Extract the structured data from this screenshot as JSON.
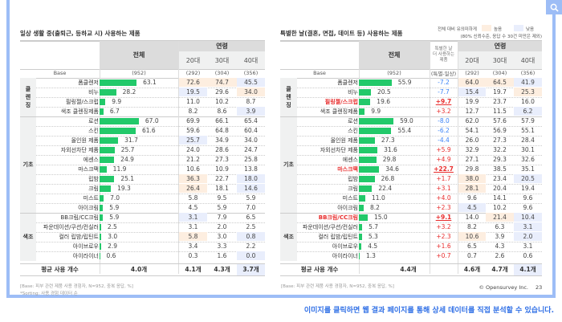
{
  "legend": {
    "line1": "전체 대비 유의미하게",
    "high": "높음",
    "low": "낮음",
    "line2": "(80% 신뢰수준, 응답 수 30건 미만은 제외)",
    "high_color": "#fdeee0",
    "low_color": "#e9eefc"
  },
  "left": {
    "title": "일상 생활 중(출퇴근, 등하교 시) 사용하는 제품",
    "total_header": "전체",
    "age_header": "연령",
    "ages": [
      "20대",
      "30대",
      "40대"
    ],
    "base_label": "Base",
    "base": [
      "(952)",
      "(292)",
      "(304)",
      "(356)"
    ],
    "categories": [
      {
        "name": "클\n렌\n징",
        "rows": 4
      },
      {
        "name": "기초",
        "rows": 10
      },
      {
        "name": "색조",
        "rows": 5
      }
    ],
    "rows": [
      {
        "label": "폼클렌저",
        "total": "63.1",
        "v": 63.1,
        "ages": [
          "72.6",
          "74.7",
          "45.5"
        ],
        "hl": [
          "h",
          "h",
          "l"
        ]
      },
      {
        "label": "비누",
        "total": "28.2",
        "v": 28.2,
        "ages": [
          "19.5",
          "29.6",
          "34.0"
        ],
        "hl": [
          "l",
          "",
          "h"
        ]
      },
      {
        "label": "필링젤/스크럽",
        "total": "9.9",
        "v": 9.9,
        "ages": [
          "11.0",
          "10.2",
          "8.7"
        ],
        "hl": [
          "",
          "",
          ""
        ]
      },
      {
        "label": "색조 클렌징제품",
        "total": "6.7",
        "v": 6.7,
        "ages": [
          "8.2",
          "8.6",
          "3.9"
        ],
        "hl": [
          "",
          "",
          "l"
        ]
      },
      {
        "label": "로션",
        "total": "67.0",
        "v": 67.0,
        "ages": [
          "69.9",
          "66.1",
          "65.4"
        ],
        "hl": [
          "",
          "",
          ""
        ]
      },
      {
        "label": "스킨",
        "total": "61.6",
        "v": 61.6,
        "ages": [
          "59.6",
          "64.8",
          "60.4"
        ],
        "hl": [
          "",
          "",
          ""
        ]
      },
      {
        "label": "올인원 제품",
        "total": "31.7",
        "v": 31.7,
        "ages": [
          "25.7",
          "34.9",
          "34.0"
        ],
        "hl": [
          "l",
          "",
          ""
        ]
      },
      {
        "label": "자외선차단 제품",
        "total": "25.7",
        "v": 25.7,
        "ages": [
          "24.0",
          "28.6",
          "24.7"
        ],
        "hl": [
          "",
          "",
          ""
        ]
      },
      {
        "label": "에센스",
        "total": "24.9",
        "v": 24.9,
        "ages": [
          "21.2",
          "27.3",
          "25.8"
        ],
        "hl": [
          "",
          "",
          ""
        ]
      },
      {
        "label": "마스크팩",
        "total": "11.9",
        "v": 11.9,
        "ages": [
          "10.6",
          "10.9",
          "13.8"
        ],
        "hl": [
          "",
          "",
          ""
        ]
      },
      {
        "label": "립밤",
        "total": "25.1",
        "v": 25.1,
        "ages": [
          "36.3",
          "22.7",
          "18.0"
        ],
        "hl": [
          "h",
          "",
          "l"
        ]
      },
      {
        "label": "크림",
        "total": "19.3",
        "v": 19.3,
        "ages": [
          "26.4",
          "18.1",
          "14.6"
        ],
        "hl": [
          "h",
          "",
          "l"
        ]
      },
      {
        "label": "미스트",
        "total": "7.0",
        "v": 7.0,
        "ages": [
          "5.8",
          "9.5",
          "5.9"
        ],
        "hl": [
          "",
          "",
          ""
        ]
      },
      {
        "label": "아이크림",
        "total": "5.9",
        "v": 5.9,
        "ages": [
          "4.5",
          "5.9",
          "7.0"
        ],
        "hl": [
          "",
          "",
          ""
        ]
      },
      {
        "label": "BB크림/CC크림",
        "total": "5.9",
        "v": 5.9,
        "ages": [
          "3.1",
          "7.9",
          "6.5"
        ],
        "hl": [
          "l",
          "",
          ""
        ]
      },
      {
        "label": "파운데이션/쿠션/컨실러",
        "total": "2.5",
        "v": 2.5,
        "ages": [
          "3.1",
          "2.0",
          "2.5"
        ],
        "hl": [
          "",
          "",
          ""
        ]
      },
      {
        "label": "컬러 립밤/립틴트",
        "total": "3.0",
        "v": 3.0,
        "ages": [
          "5.8",
          "3.0",
          "0.8"
        ],
        "hl": [
          "h",
          "",
          "l"
        ]
      },
      {
        "label": "아이브로우",
        "total": "2.9",
        "v": 2.9,
        "ages": [
          "3.4",
          "3.3",
          "2.2"
        ],
        "hl": [
          "",
          "",
          ""
        ]
      },
      {
        "label": "아이라이너",
        "total": "0.6",
        "v": 0.6,
        "ages": [
          "0.3",
          "1.6",
          "0.0"
        ],
        "hl": [
          "",
          "",
          "l"
        ]
      }
    ],
    "avg_label": "평균 사용 개수",
    "avg": [
      "4.0개",
      "4.1개",
      "4.3개",
      "3.7개"
    ],
    "avg_hl": [
      "",
      "",
      "l"
    ],
    "footnote1": "[Base: 피부 관련 제품 사용 경험자, N=952, 중복 응답, %]",
    "footnote2": "*Sorting: 사용 경험 데이터 순"
  },
  "right": {
    "title": "특별한 날(결혼, 면접, 데이트 등) 사용하는 제품",
    "total_header": "전체",
    "diff_header": "특별한 날\n더 사용하는\n제품",
    "age_header": "연령",
    "ages": [
      "20대",
      "30대",
      "40대"
    ],
    "base_label": "Base",
    "base": [
      "(952)",
      "(특별-일상)",
      "(292)",
      "(304)",
      "(356)"
    ],
    "categories": [
      {
        "name": "클\n렌\n징",
        "rows": 4
      },
      {
        "name": "기초",
        "rows": 10
      },
      {
        "name": "색조",
        "rows": 5
      }
    ],
    "rows": [
      {
        "label": "폼클렌저",
        "total": "55.9",
        "v": 55.9,
        "diff": "-7.2",
        "ages": [
          "64.0",
          "64.5",
          "41.9"
        ],
        "hl": [
          "h",
          "h",
          "l"
        ]
      },
      {
        "label": "비누",
        "total": "20.5",
        "v": 20.5,
        "diff": "-7.7",
        "ages": [
          "15.4",
          "19.7",
          "25.3"
        ],
        "hl": [
          "l",
          "",
          "h"
        ]
      },
      {
        "label": "필링젤/스크럽",
        "total": "19.6",
        "v": 19.6,
        "diff": "+9.7",
        "em": true,
        "ages": [
          "19.9",
          "23.7",
          "16.0"
        ],
        "hl": [
          "",
          "",
          ""
        ]
      },
      {
        "label": "색조 클렌징제품",
        "total": "9.9",
        "v": 9.9,
        "diff": "+3.2",
        "ages": [
          "12.7",
          "11.5",
          "6.2"
        ],
        "hl": [
          "",
          "",
          "l"
        ]
      },
      {
        "label": "로션",
        "total": "59.0",
        "v": 59.0,
        "diff": "-8.0",
        "ages": [
          "62.0",
          "57.6",
          "57.9"
        ],
        "hl": [
          "",
          "",
          ""
        ]
      },
      {
        "label": "스킨",
        "total": "55.4",
        "v": 55.4,
        "diff": "-6.2",
        "ages": [
          "54.1",
          "56.9",
          "55.1"
        ],
        "hl": [
          "",
          "",
          ""
        ]
      },
      {
        "label": "올인원 제품",
        "total": "27.3",
        "v": 27.3,
        "diff": "-4.4",
        "ages": [
          "26.0",
          "27.3",
          "28.4"
        ],
        "hl": [
          "",
          "",
          ""
        ]
      },
      {
        "label": "자외선차단 제품",
        "total": "31.6",
        "v": 31.6,
        "diff": "+5.9",
        "ages": [
          "32.9",
          "32.2",
          "30.1"
        ],
        "hl": [
          "",
          "",
          ""
        ]
      },
      {
        "label": "에센스",
        "total": "29.8",
        "v": 29.8,
        "diff": "+4.9",
        "ages": [
          "27.1",
          "29.3",
          "32.6"
        ],
        "hl": [
          "",
          "",
          ""
        ]
      },
      {
        "label": "마스크팩",
        "total": "34.6",
        "v": 34.6,
        "diff": "+22.7",
        "em": true,
        "ages": [
          "29.8",
          "38.5",
          "35.1"
        ],
        "hl": [
          "",
          "",
          ""
        ]
      },
      {
        "label": "립밤",
        "total": "26.8",
        "v": 26.8,
        "diff": "+1.7",
        "ages": [
          "38.0",
          "23.4",
          "20.5"
        ],
        "hl": [
          "h",
          "",
          "l"
        ]
      },
      {
        "label": "크림",
        "total": "22.4",
        "v": 22.4,
        "diff": "+3.1",
        "ages": [
          "28.1",
          "20.4",
          "19.4"
        ],
        "hl": [
          "h",
          "",
          ""
        ]
      },
      {
        "label": "미스트",
        "total": "11.0",
        "v": 11.0,
        "diff": "+4.0",
        "ages": [
          "9.6",
          "14.1",
          "9.6"
        ],
        "hl": [
          "",
          "",
          ""
        ]
      },
      {
        "label": "아이크림",
        "total": "8.2",
        "v": 8.2,
        "diff": "+2.3",
        "ages": [
          "4.5",
          "10.2",
          "9.6"
        ],
        "hl": [
          "l",
          "",
          ""
        ]
      },
      {
        "label": "BB크림/CC크림",
        "total": "15.0",
        "v": 15.0,
        "diff": "+9.1",
        "em": true,
        "ages": [
          "14.0",
          "21.4",
          "10.4"
        ],
        "hl": [
          "",
          "h",
          "l"
        ]
      },
      {
        "label": "파운데이션/쿠션/컨실러",
        "total": "5.7",
        "v": 5.7,
        "diff": "+3.2",
        "ages": [
          "8.2",
          "6.3",
          "3.1"
        ],
        "hl": [
          "",
          "",
          "l"
        ]
      },
      {
        "label": "컬러 립밤/립틴트",
        "total": "5.3",
        "v": 5.3,
        "diff": "+2.3",
        "ages": [
          "10.6",
          "3.9",
          "2.0"
        ],
        "hl": [
          "h",
          "",
          "l"
        ]
      },
      {
        "label": "아이브로우",
        "total": "4.5",
        "v": 4.5,
        "diff": "+1.6",
        "ages": [
          "6.5",
          "4.3",
          "3.1"
        ],
        "hl": [
          "",
          "",
          ""
        ]
      },
      {
        "label": "아이라이너",
        "total": "1.3",
        "v": 1.3,
        "diff": "+0.7",
        "ages": [
          "0.7",
          "2.6",
          "0.6"
        ],
        "hl": [
          "",
          "",
          ""
        ]
      }
    ],
    "avg_label": "평균 사용 개수",
    "avg": [
      "4.4개",
      "4.6개",
      "4.7개",
      "4.1개"
    ],
    "avg_hl": [
      "",
      "",
      "l"
    ],
    "footnote1": "[Base: 피부 관련 제품 사용 경험자, N=952, 중복 응답, %]"
  },
  "copyright": "© Opensurvey Inc.",
  "page_number": "23",
  "bottom_link": "이미지를 클릭하면 웹 결과 페이지를 통해 상세 데이터를 직접 분석할 수 있습니다.",
  "icons": {
    "search": "search-icon"
  }
}
